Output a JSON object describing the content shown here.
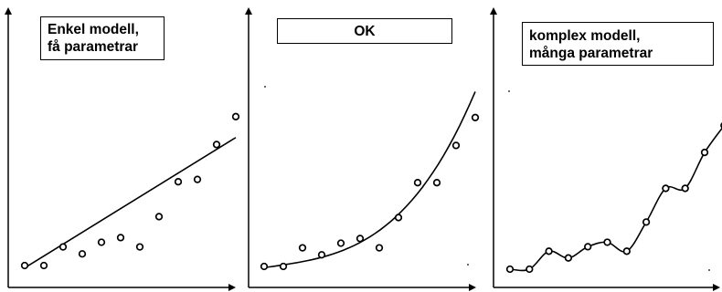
{
  "panels": [
    {
      "label": "Enkel modell,\nfå parametrar",
      "points": [
        [
          1,
          1.0
        ],
        [
          2,
          1.0
        ],
        [
          3,
          1.8
        ],
        [
          4,
          1.5
        ],
        [
          5,
          2.0
        ],
        [
          6,
          2.2
        ],
        [
          7,
          1.8
        ],
        [
          8,
          3.1
        ],
        [
          9,
          4.6
        ],
        [
          10,
          4.7
        ],
        [
          11,
          6.2
        ],
        [
          12,
          7.4
        ]
      ],
      "fit": "linear",
      "fit_line": [
        [
          1,
          0.9
        ],
        [
          12,
          6.5
        ]
      ]
    },
    {
      "label": "OK",
      "points": [
        [
          1,
          1.0
        ],
        [
          2,
          1.0
        ],
        [
          3,
          1.8
        ],
        [
          4,
          1.5
        ],
        [
          5,
          2.0
        ],
        [
          6,
          2.2
        ],
        [
          7,
          1.8
        ],
        [
          8,
          3.1
        ],
        [
          9,
          4.6
        ],
        [
          10,
          4.6
        ],
        [
          11,
          6.2
        ],
        [
          12,
          7.4
        ]
      ],
      "fit": "smooth"
    },
    {
      "label": "komplex modell,\nmånga parametrar",
      "points": [
        [
          1,
          1.0
        ],
        [
          2,
          1.0
        ],
        [
          3,
          1.8
        ],
        [
          4,
          1.5
        ],
        [
          5,
          2.0
        ],
        [
          6,
          2.2
        ],
        [
          7,
          1.8
        ],
        [
          8,
          3.1
        ],
        [
          9,
          4.6
        ],
        [
          10,
          4.6
        ],
        [
          11,
          6.2
        ],
        [
          12,
          7.4
        ]
      ],
      "fit": "interpolating"
    }
  ]
}
